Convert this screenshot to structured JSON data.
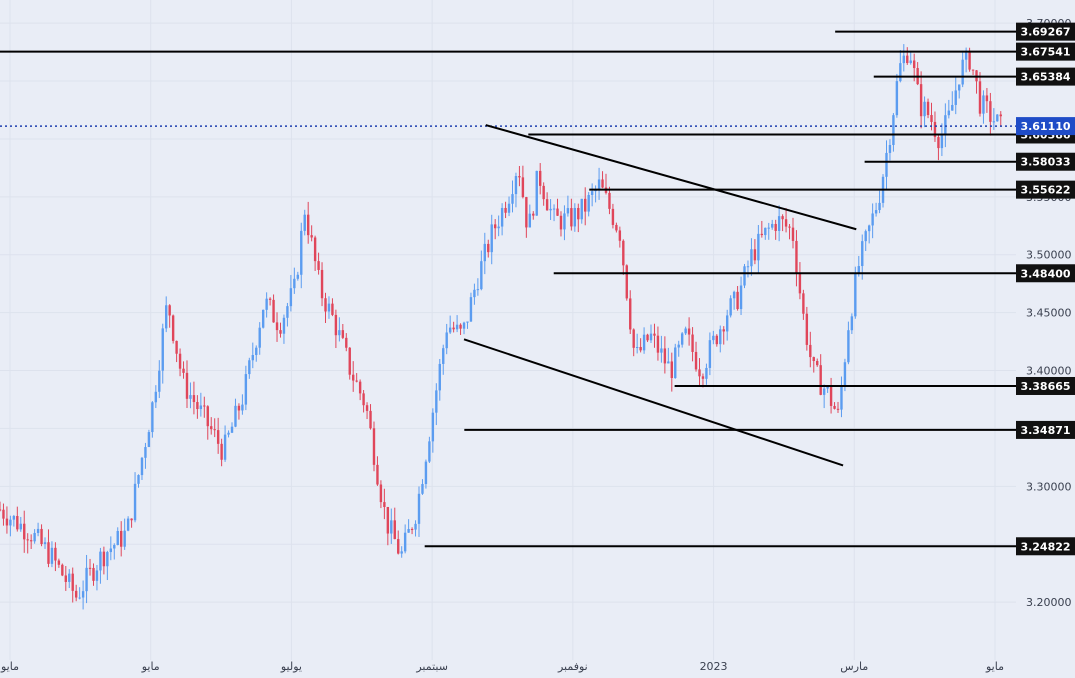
{
  "chart_data": {
    "type": "candlestick",
    "title": "",
    "xlabel": "",
    "ylabel": "",
    "ylim": [
      3.15,
      3.72
    ],
    "colors": {
      "up": "#5b9cf0",
      "down": "#e0465a",
      "background": "#e9edf6",
      "grid": "#dde2ed",
      "current_price_line": "#1d3fb0",
      "current_price_label": "#1f4cc7"
    },
    "y_ticks": [
      "3.20000",
      "3.25000",
      "3.30000",
      "3.35000",
      "3.40000",
      "3.45000",
      "3.50000",
      "3.55000",
      "3.60000",
      "3.65000",
      "3.70000"
    ],
    "x_ticks": [
      "مايو",
      "مايو",
      "يوليو",
      "سبتمبر",
      "نوفمبر",
      "2023",
      "مارس",
      "مايو"
    ],
    "current_price": "3.61110",
    "levels": [
      {
        "label": "3.69267",
        "value": 3.69267
      },
      {
        "label": "3.67541",
        "value": 3.67541
      },
      {
        "label": "3.65384",
        "value": 3.65384
      },
      {
        "label": "3.60386",
        "value": 3.60386
      },
      {
        "label": "3.58033",
        "value": 3.58033
      },
      {
        "label": "3.55622",
        "value": 3.55622
      },
      {
        "label": "3.48400",
        "value": 3.484
      },
      {
        "label": "3.38665",
        "value": 3.38665
      },
      {
        "label": "3.34871",
        "value": 3.34871
      },
      {
        "label": "3.24822",
        "value": 3.24822
      }
    ],
    "trendlines": [
      {
        "name": "upper-trendline",
        "start": [
          0.4781,
          3.612
        ],
        "end": [
          0.8428,
          3.522
        ]
      },
      {
        "name": "lower-trendline",
        "start": [
          0.4567,
          3.427
        ],
        "end": [
          0.8298,
          3.318
        ]
      }
    ],
    "series": [
      {
        "name": "price",
        "points": [
          [
            0.0,
            3.28
          ],
          [
            0.03,
            3.26
          ],
          [
            0.05,
            3.24
          ],
          [
            0.075,
            3.205
          ],
          [
            0.1,
            3.24
          ],
          [
            0.125,
            3.26
          ],
          [
            0.15,
            3.37
          ],
          [
            0.165,
            3.46
          ],
          [
            0.18,
            3.39
          ],
          [
            0.2,
            3.36
          ],
          [
            0.22,
            3.33
          ],
          [
            0.24,
            3.38
          ],
          [
            0.26,
            3.46
          ],
          [
            0.275,
            3.44
          ],
          [
            0.29,
            3.47
          ],
          [
            0.3,
            3.54
          ],
          [
            0.315,
            3.47
          ],
          [
            0.33,
            3.44
          ],
          [
            0.345,
            3.4
          ],
          [
            0.36,
            3.37
          ],
          [
            0.37,
            3.32
          ],
          [
            0.38,
            3.27
          ],
          [
            0.395,
            3.24
          ],
          [
            0.41,
            3.28
          ],
          [
            0.425,
            3.36
          ],
          [
            0.44,
            3.44
          ],
          [
            0.455,
            3.43
          ],
          [
            0.47,
            3.48
          ],
          [
            0.485,
            3.52
          ],
          [
            0.5,
            3.55
          ],
          [
            0.51,
            3.58
          ],
          [
            0.52,
            3.52
          ],
          [
            0.53,
            3.57
          ],
          [
            0.545,
            3.53
          ],
          [
            0.56,
            3.53
          ],
          [
            0.575,
            3.54
          ],
          [
            0.59,
            3.56
          ],
          [
            0.61,
            3.52
          ],
          [
            0.625,
            3.41
          ],
          [
            0.64,
            3.43
          ],
          [
            0.66,
            3.4
          ],
          [
            0.675,
            3.43
          ],
          [
            0.69,
            3.4
          ],
          [
            0.7,
            3.42
          ],
          [
            0.715,
            3.45
          ],
          [
            0.725,
            3.46
          ],
          [
            0.74,
            3.5
          ],
          [
            0.755,
            3.52
          ],
          [
            0.765,
            3.53
          ],
          [
            0.78,
            3.52
          ],
          [
            0.79,
            3.45
          ],
          [
            0.8,
            3.4
          ],
          [
            0.815,
            3.38
          ],
          [
            0.825,
            3.36
          ],
          [
            0.835,
            3.44
          ],
          [
            0.845,
            3.49
          ],
          [
            0.855,
            3.52
          ],
          [
            0.865,
            3.55
          ],
          [
            0.875,
            3.6
          ],
          [
            0.885,
            3.66
          ],
          [
            0.895,
            3.68
          ],
          [
            0.905,
            3.63
          ],
          [
            0.915,
            3.62
          ],
          [
            0.925,
            3.6
          ],
          [
            0.935,
            3.62
          ],
          [
            0.945,
            3.66
          ],
          [
            0.955,
            3.67
          ],
          [
            0.965,
            3.63
          ],
          [
            0.975,
            3.62
          ],
          [
            0.985,
            3.61
          ]
        ]
      }
    ]
  }
}
